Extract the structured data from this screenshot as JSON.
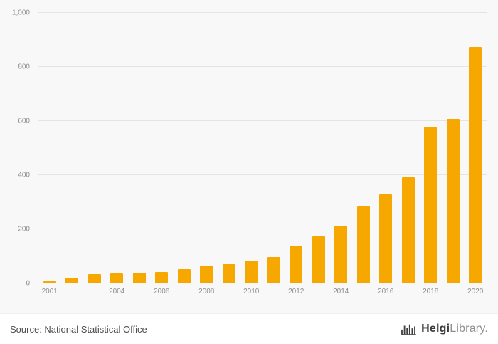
{
  "chart_data": {
    "type": "bar",
    "title": "",
    "xlabel": "",
    "ylabel": "",
    "categories": [
      "2001",
      "2002",
      "2003",
      "2004",
      "2005",
      "2006",
      "2007",
      "2008",
      "2009",
      "2010",
      "2011",
      "2012",
      "2013",
      "2014",
      "2015",
      "2016",
      "2017",
      "2018",
      "2019",
      "2020"
    ],
    "values": [
      8,
      22,
      33,
      36,
      40,
      43,
      52,
      67,
      70,
      85,
      98,
      137,
      175,
      213,
      287,
      328,
      393,
      580,
      607,
      873
    ],
    "ylim": [
      0,
      1000
    ],
    "yticks": [
      0,
      200,
      400,
      600,
      800,
      1000
    ],
    "ytick_labels": [
      "0",
      "200",
      "400",
      "600",
      "800",
      "1,000"
    ],
    "xtick_labels_visible": [
      "2001",
      "2004",
      "2006",
      "2008",
      "2010",
      "2012",
      "2014",
      "2016",
      "2018",
      "2020"
    ],
    "grid": true,
    "legend_position": "none",
    "bar_color": "#f7a800",
    "background_color": "#f8f8f8"
  },
  "footer": {
    "source_text": "Source: National Statistical Office",
    "logo": {
      "brand_bold": "Helgi",
      "brand_light": "Library."
    }
  }
}
